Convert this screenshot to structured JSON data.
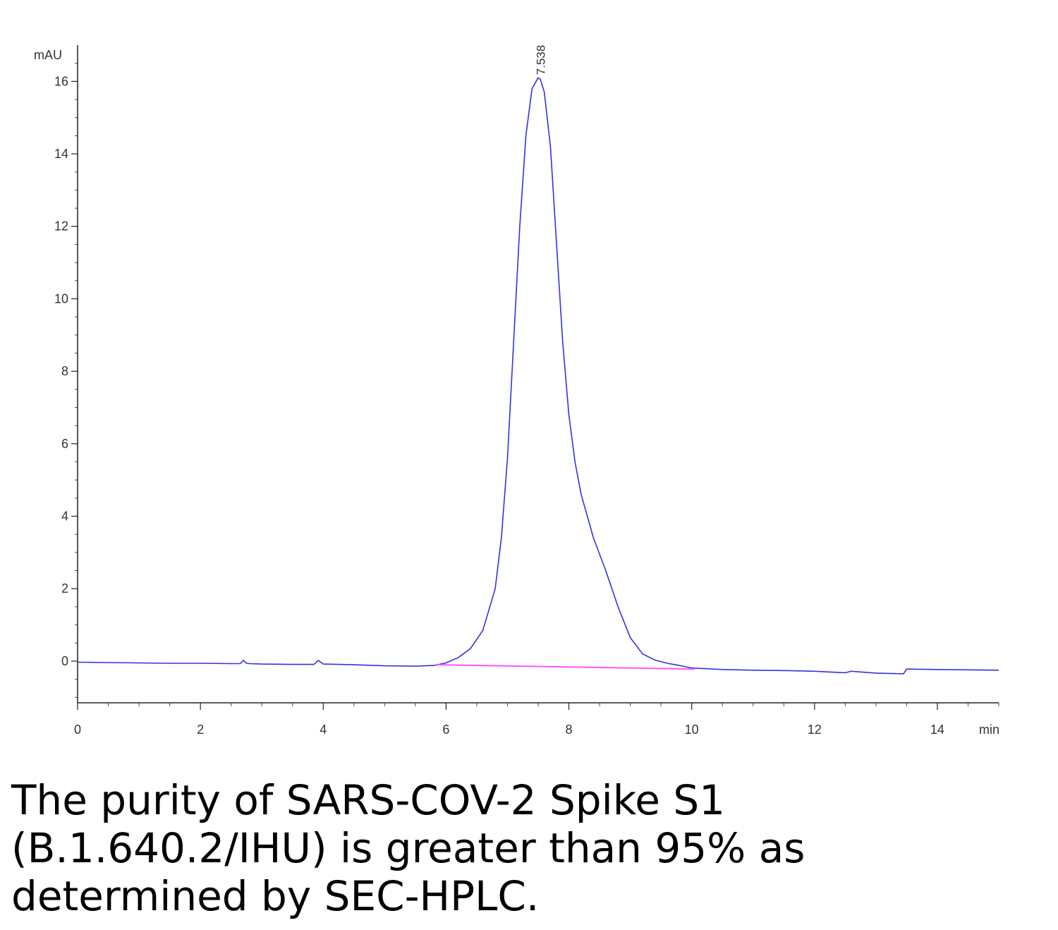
{
  "chart_data": {
    "type": "line",
    "ylabel": "mAU",
    "xlabel": "min",
    "xlim": [
      0,
      15
    ],
    "ylim": [
      -1.15,
      17
    ],
    "x_ticks": [
      0,
      2,
      4,
      6,
      8,
      10,
      12,
      14
    ],
    "x_tick_labels": [
      "0",
      "2",
      "4",
      "6",
      "8",
      "10",
      "12",
      "14"
    ],
    "y_ticks": [
      0,
      2,
      4,
      6,
      8,
      10,
      12,
      14,
      16
    ],
    "y_tick_labels": [
      "0",
      "2",
      "4",
      "6",
      "8",
      "10",
      "12",
      "14",
      "16"
    ],
    "peak_label": "7.538",
    "peak_x": 7.538,
    "peak_y": 16.1,
    "series": [
      {
        "color": "#3333dd",
        "x": [
          0,
          0.5,
          1.0,
          1.5,
          2.0,
          2.5,
          2.65,
          2.7,
          2.75,
          2.8,
          3.0,
          3.5,
          3.85,
          3.92,
          4.0,
          4.5,
          5.0,
          5.5,
          5.8,
          6.0,
          6.2,
          6.4,
          6.6,
          6.8,
          6.9,
          7.0,
          7.1,
          7.2,
          7.3,
          7.4,
          7.5,
          7.538,
          7.6,
          7.7,
          7.8,
          7.9,
          8.0,
          8.1,
          8.2,
          8.3,
          8.4,
          8.6,
          8.8,
          9.0,
          9.2,
          9.4,
          9.6,
          9.8,
          10.0,
          10.5,
          11.0,
          11.5,
          12.0,
          12.5,
          12.6,
          13.0,
          13.45,
          13.5,
          14.0,
          14.5,
          15.0
        ],
        "y": [
          -0.03,
          -0.04,
          -0.05,
          -0.06,
          -0.06,
          -0.07,
          -0.07,
          0.02,
          -0.06,
          -0.07,
          -0.08,
          -0.09,
          -0.09,
          0.02,
          -0.08,
          -0.1,
          -0.13,
          -0.14,
          -0.12,
          -0.05,
          0.1,
          0.35,
          0.85,
          2.0,
          3.4,
          5.6,
          8.8,
          12.0,
          14.5,
          15.8,
          16.1,
          16.05,
          15.7,
          14.2,
          11.5,
          8.8,
          6.8,
          5.5,
          4.6,
          4.0,
          3.4,
          2.5,
          1.5,
          0.65,
          0.2,
          0.03,
          -0.06,
          -0.12,
          -0.19,
          -0.23,
          -0.25,
          -0.26,
          -0.28,
          -0.32,
          -0.28,
          -0.33,
          -0.35,
          -0.22,
          -0.23,
          -0.24,
          -0.25
        ]
      },
      {
        "color": "#ff55ff",
        "x": [
          5.85,
          10.05
        ],
        "y": [
          -0.1,
          -0.22
        ]
      }
    ]
  },
  "caption": {
    "line1": "The purity of SARS-COV-2 Spike S1",
    "line2": "(B.1.640.2/IHU) is greater than 95% as",
    "line3": "determined by SEC-HPLC."
  }
}
